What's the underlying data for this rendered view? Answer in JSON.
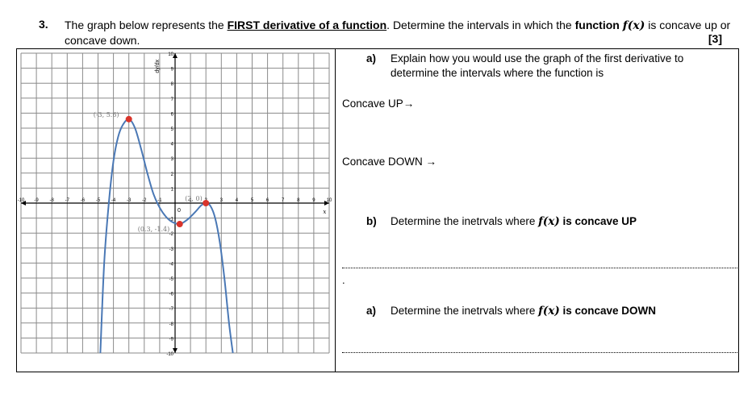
{
  "question": {
    "number": "3.",
    "text_part1": "The graph below represents the ",
    "text_bold_underline": "FIRST derivative of a function",
    "text_part2": ". Determine the intervals in which the ",
    "text_bold": "function",
    "fx": "f(x)",
    "text_part3": " is concave up or concave down.",
    "marks": "[3]"
  },
  "right": {
    "a1_label": "a)",
    "a1_text": "Explain how you would use the graph of the first derivative to determine the intervals where the function is",
    "concave_up": "Concave UP→",
    "concave_down": "Concave DOWN →",
    "b_label": "b)",
    "b_text": "Determine the inetrvals where ",
    "b_fx": "f(x)",
    "b_bold": " is concave UP",
    "dot": ".",
    "a2_label": "a)",
    "a2_text": "Determine the inetrvals where ",
    "a2_fx": "f(x)",
    "a2_bold": " is concave DOWN"
  },
  "chart_data": {
    "type": "line",
    "ylabel": "dy/dx",
    "xlabel": "x",
    "xlim": [
      -10,
      10
    ],
    "ylim": [
      -10,
      10
    ],
    "x_ticks": [
      "-10",
      "-9",
      "-8",
      "-7",
      "-6",
      "-5",
      "-4",
      "-3",
      "-2",
      "-1",
      "0",
      "1",
      "2",
      "3",
      "4",
      "5",
      "6",
      "7",
      "8",
      "9",
      "10"
    ],
    "y_ticks": [
      "10",
      "9",
      "8",
      "7",
      "6",
      "5",
      "4",
      "3",
      "2",
      "1",
      "-1",
      "-2",
      "-3",
      "-4",
      "-5",
      "-6",
      "-7",
      "-8",
      "-9",
      "-10"
    ],
    "grid": true,
    "points": [
      {
        "x": -3,
        "y": 5.6,
        "label": "(-3, 5.6)"
      },
      {
        "x": 0.3,
        "y": -1.4,
        "label": "(0.3, -1.4)"
      },
      {
        "x": 2,
        "y": 0,
        "label": "(2, 0)"
      }
    ],
    "curve": [
      [
        -4.85,
        -10
      ],
      [
        -4.6,
        -4
      ],
      [
        -4.3,
        0
      ],
      [
        -4,
        2.8
      ],
      [
        -3.7,
        4.4
      ],
      [
        -3.4,
        5.2
      ],
      [
        -3,
        5.6
      ],
      [
        -2.6,
        5.0
      ],
      [
        -2.2,
        3.6
      ],
      [
        -1.8,
        2.0
      ],
      [
        -1.4,
        0.6
      ],
      [
        -1,
        -0.3
      ],
      [
        -0.6,
        -0.9
      ],
      [
        -0.2,
        -1.25
      ],
      [
        0.3,
        -1.4
      ],
      [
        0.8,
        -1.1
      ],
      [
        1.3,
        -0.6
      ],
      [
        1.7,
        -0.15
      ],
      [
        2,
        0
      ],
      [
        2.3,
        -0.2
      ],
      [
        2.6,
        -1.0
      ],
      [
        2.9,
        -2.6
      ],
      [
        3.2,
        -5.0
      ],
      [
        3.5,
        -8.0
      ],
      [
        3.75,
        -10
      ]
    ],
    "curve_color": "#4a78b5",
    "point_color": "#d9342b"
  }
}
